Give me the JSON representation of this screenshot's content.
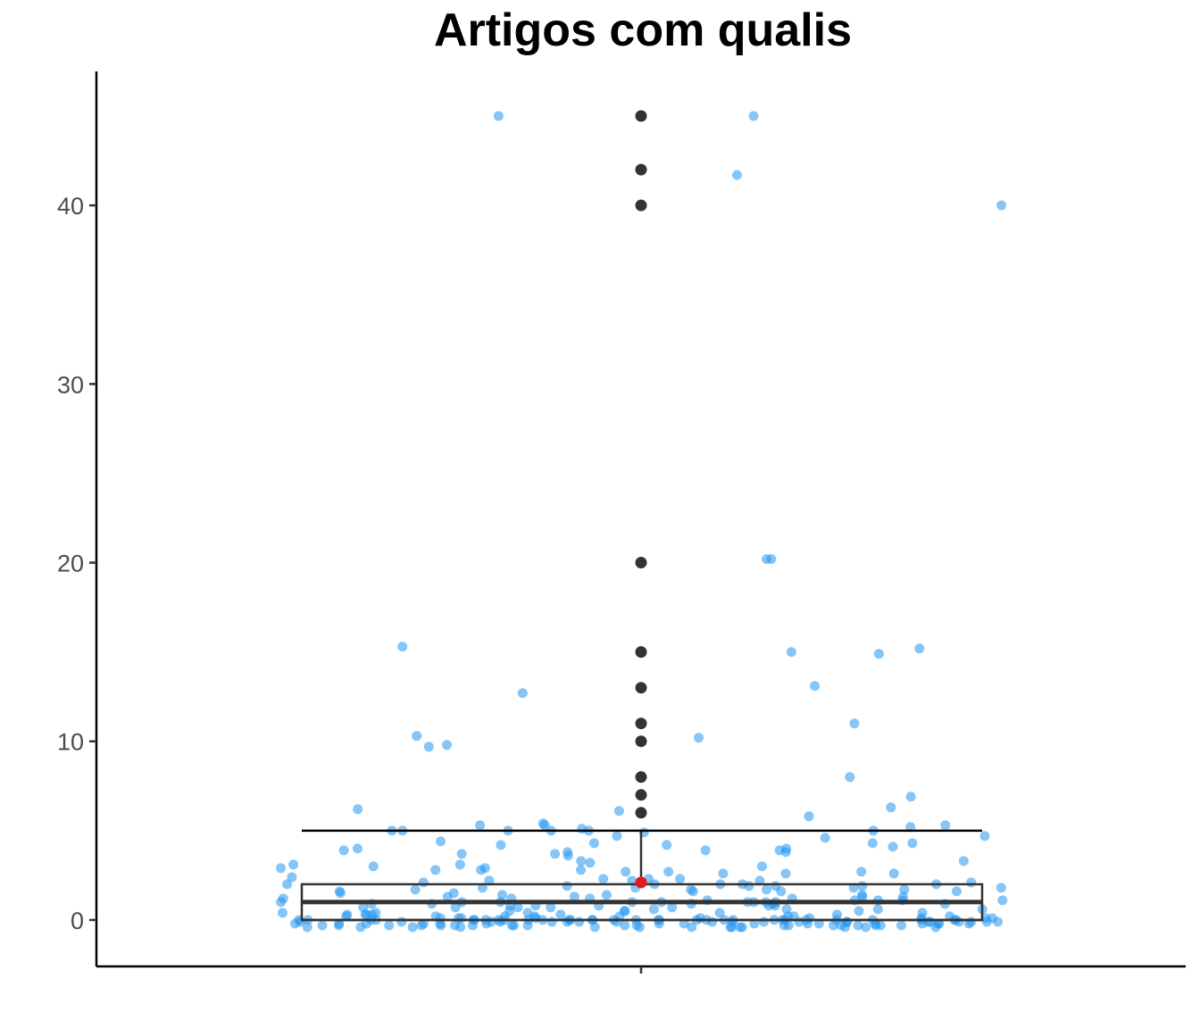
{
  "chart_data": {
    "type": "box",
    "title": "Artigos com qualis",
    "xlabel": "",
    "ylabel": "",
    "ylim": [
      -2.6,
      47.5
    ],
    "y_ticks": [
      0,
      10,
      20,
      30,
      40
    ],
    "grid": false,
    "colors": {
      "points": "#2196F3",
      "box": "#333333",
      "outliers": "#333333",
      "mean": "#E41A1C"
    },
    "box": {
      "q1": 0,
      "median": 1,
      "q3": 2,
      "whisker_low": 0,
      "whisker_high": 5,
      "mean": 2.1
    },
    "outliers": [
      6,
      7,
      8,
      10,
      11,
      13,
      15,
      20,
      40,
      42,
      45
    ],
    "jitter_points": [
      45,
      45,
      41.7,
      40,
      20.2,
      20.2,
      15.3,
      15.2,
      15,
      14.9,
      13.1,
      12.7,
      11,
      10.3,
      10.2,
      9.8,
      9.7,
      8,
      6.9,
      6.3,
      6.2,
      6.1,
      5.8,
      5.4,
      5.3,
      5.3,
      5.3,
      5.2,
      5.1,
      5,
      5,
      5,
      5,
      5,
      5,
      4.9,
      4.7,
      4.7,
      4.6,
      4.4,
      4.3,
      4.3,
      4.3,
      4.2,
      4.2,
      4.1,
      4,
      4,
      3.9,
      3.9,
      3.9,
      3.8,
      3.8,
      3.7,
      3.7,
      3.6,
      3.3,
      3.3,
      3.2,
      3.1,
      3.1,
      3,
      3,
      2.9,
      2.9,
      2.8,
      2.8,
      2.8,
      2.7,
      2.7,
      2.7,
      2.6,
      2.6,
      2.6,
      2.4,
      2.3,
      2.3,
      2.3,
      2.2,
      2.2,
      2.2,
      2.1,
      2.1,
      2,
      2,
      2,
      2,
      2,
      1.9,
      1.9,
      1.9,
      1.9,
      1.8,
      1.8,
      1.8,
      1.8,
      1.7,
      1.7,
      1.7,
      1.7,
      1.6,
      1.6,
      1.6,
      1.6,
      1.5,
      1.5,
      1.4,
      1.4,
      1.4,
      1.3,
      1.3,
      1.3,
      1.3,
      1.2,
      1.2,
      1.2,
      1.2,
      1.1,
      1.1,
      1.1,
      1.1,
      1.1,
      1,
      1,
      1,
      1,
      1,
      1,
      1,
      1,
      1,
      0.9,
      0.9,
      0.9,
      0.9,
      0.9,
      0.8,
      0.8,
      0.8,
      0.8,
      0.8,
      0.7,
      0.7,
      0.7,
      0.7,
      0.7,
      0.6,
      0.6,
      0.6,
      0.6,
      0.5,
      0.5,
      0.5,
      0.5,
      0.4,
      0.4,
      0.4,
      0.4,
      0.4,
      0.3,
      0.3,
      0.3,
      0.3,
      0.3,
      0.3,
      0.2,
      0.2,
      0.2,
      0.2,
      0.2,
      0.2,
      0.2,
      0.2,
      0.1,
      0.1,
      0.1,
      0.1,
      0.1,
      0.1,
      0.1,
      0.1,
      0.1,
      0,
      0,
      0,
      0,
      0,
      0,
      0,
      0,
      0,
      0,
      0,
      0,
      0,
      0,
      0,
      0,
      0,
      0,
      0,
      0,
      0,
      0,
      0,
      0,
      0,
      0,
      0,
      0,
      0,
      0,
      0,
      0,
      -0.1,
      -0.1,
      -0.1,
      -0.1,
      -0.1,
      -0.1,
      -0.1,
      -0.1,
      -0.1,
      -0.1,
      -0.1,
      -0.1,
      -0.1,
      -0.1,
      -0.1,
      -0.1,
      -0.1,
      -0.1,
      -0.1,
      -0.1,
      -0.2,
      -0.2,
      -0.2,
      -0.2,
      -0.2,
      -0.2,
      -0.2,
      -0.2,
      -0.2,
      -0.2,
      -0.2,
      -0.2,
      -0.2,
      -0.2,
      -0.2,
      -0.2,
      -0.3,
      -0.3,
      -0.3,
      -0.3,
      -0.3,
      -0.3,
      -0.3,
      -0.3,
      -0.3,
      -0.3,
      -0.3,
      -0.3,
      -0.3,
      -0.3,
      -0.3,
      -0.3,
      -0.3,
      -0.3,
      -0.3,
      -0.3,
      -0.4,
      -0.4,
      -0.4,
      -0.4,
      -0.4,
      -0.4,
      -0.4,
      -0.4,
      -0.4,
      -0.4,
      -0.4,
      -0.4,
      -0.4,
      -0.4
    ]
  }
}
